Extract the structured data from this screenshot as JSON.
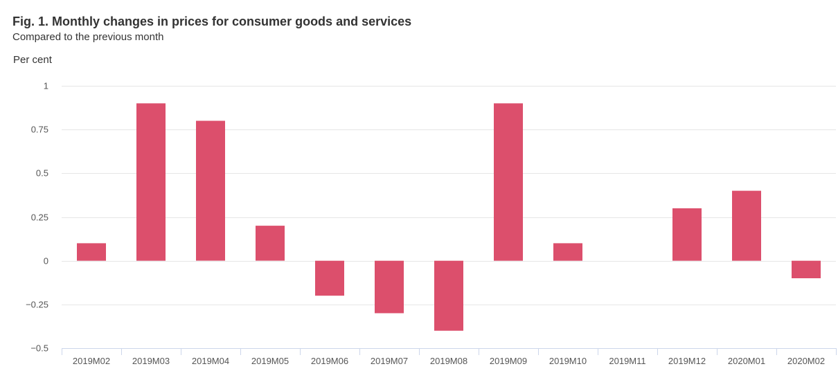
{
  "chart_data": {
    "type": "bar",
    "title": "Fig. 1. Monthly changes in prices for consumer goods and services",
    "subtitle": "Compared to the previous month",
    "ylabel": "Per cent",
    "xlabel": "",
    "categories": [
      "2019M02",
      "2019M03",
      "2019M04",
      "2019M05",
      "2019M06",
      "2019M07",
      "2019M08",
      "2019M09",
      "2019M10",
      "2019M11",
      "2019M12",
      "2020M01",
      "2020M02"
    ],
    "values": [
      0.1,
      0.9,
      0.8,
      0.2,
      -0.2,
      -0.3,
      -0.4,
      0.9,
      0.1,
      0,
      0.3,
      0.4,
      -0.1
    ],
    "ylim": [
      -0.5,
      1
    ],
    "yticks": [
      1,
      0.75,
      0.5,
      0.25,
      0,
      -0.25,
      -0.5
    ],
    "ytick_labels": [
      "1",
      "0.75",
      "0.5",
      "0.25",
      "0",
      "−0.25",
      "−0.5"
    ],
    "grid": true,
    "bar_color": "#dc4f6c",
    "grid_color": "#e6e6e6",
    "axis_color": "#ccd6eb"
  }
}
